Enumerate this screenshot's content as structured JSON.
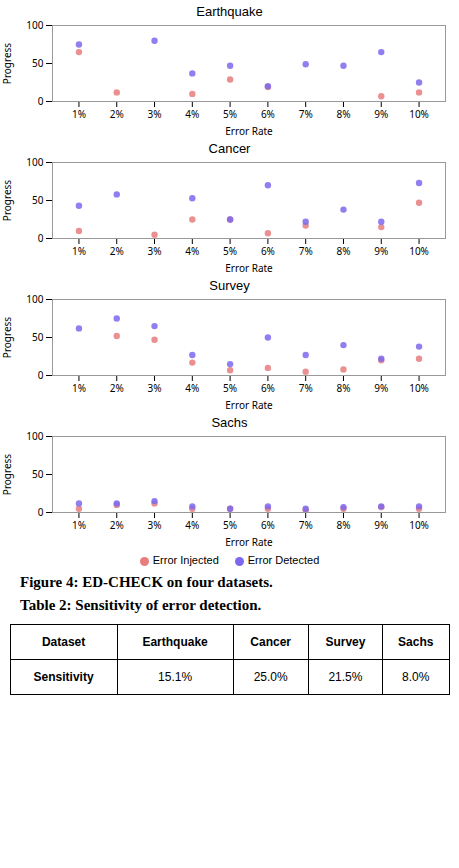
{
  "chart_data": [
    {
      "type": "scatter",
      "title": "Earthquake",
      "xlabel": "Error Rate",
      "ylabel": "Progress",
      "x": [
        1,
        2,
        3,
        4,
        5,
        6,
        7,
        8,
        9,
        10
      ],
      "series": [
        {
          "name": "Error Injected",
          "color": "#e87d7d",
          "marker": "o",
          "values": [
            65,
            12,
            null,
            10,
            29,
            19,
            null,
            null,
            7,
            12
          ]
        },
        {
          "name": "Error Detected",
          "color": "#7b68ee",
          "marker": "o",
          "values": [
            75,
            null,
            80,
            37,
            47,
            20,
            49,
            47,
            65,
            25
          ]
        }
      ],
      "xlim": [
        0.3,
        10.7
      ],
      "xticks": [
        {
          "value": 1,
          "label": "1%"
        },
        {
          "value": 2,
          "label": "2%"
        },
        {
          "value": 3,
          "label": "3%"
        },
        {
          "value": 4,
          "label": "4%"
        },
        {
          "value": 5,
          "label": "5%"
        },
        {
          "value": 6,
          "label": "6%"
        },
        {
          "value": 7,
          "label": "7%"
        },
        {
          "value": 8,
          "label": "8%"
        },
        {
          "value": 9,
          "label": "9%"
        },
        {
          "value": 10,
          "label": "10%"
        }
      ],
      "ylim": [
        0,
        100
      ],
      "yticks": [
        0,
        50,
        100
      ],
      "grid": false
    },
    {
      "type": "scatter",
      "title": "Cancer",
      "xlabel": "Error Rate",
      "ylabel": "Progress",
      "x": [
        1,
        2,
        3,
        4,
        5,
        6,
        7,
        8,
        9,
        10
      ],
      "series": [
        {
          "name": "Error Injected",
          "color": "#e87d7d",
          "marker": "o",
          "values": [
            10,
            null,
            5,
            25,
            25,
            7,
            17,
            null,
            15,
            47
          ]
        },
        {
          "name": "Error Detected",
          "color": "#7b68ee",
          "marker": "o",
          "values": [
            43,
            58,
            null,
            53,
            25,
            70,
            22,
            38,
            22,
            73
          ]
        }
      ],
      "xlim": [
        0.3,
        10.7
      ],
      "xticks": [
        {
          "value": 1,
          "label": "1%"
        },
        {
          "value": 2,
          "label": "2%"
        },
        {
          "value": 3,
          "label": "3%"
        },
        {
          "value": 4,
          "label": "4%"
        },
        {
          "value": 5,
          "label": "5%"
        },
        {
          "value": 6,
          "label": "6%"
        },
        {
          "value": 7,
          "label": "7%"
        },
        {
          "value": 8,
          "label": "8%"
        },
        {
          "value": 9,
          "label": "9%"
        },
        {
          "value": 10,
          "label": "10%"
        }
      ],
      "ylim": [
        0,
        100
      ],
      "yticks": [
        0,
        50,
        100
      ],
      "grid": false
    },
    {
      "type": "scatter",
      "title": "Survey",
      "xlabel": "Error Rate",
      "ylabel": "Progress",
      "x": [
        1,
        2,
        3,
        4,
        5,
        6,
        7,
        8,
        9,
        10
      ],
      "series": [
        {
          "name": "Error Injected",
          "color": "#e87d7d",
          "marker": "o",
          "values": [
            null,
            52,
            47,
            17,
            7,
            10,
            5,
            8,
            20,
            22
          ]
        },
        {
          "name": "Error Detected",
          "color": "#7b68ee",
          "marker": "o",
          "values": [
            62,
            75,
            65,
            27,
            15,
            50,
            27,
            40,
            22,
            38
          ]
        }
      ],
      "xlim": [
        0.3,
        10.7
      ],
      "xticks": [
        {
          "value": 1,
          "label": "1%"
        },
        {
          "value": 2,
          "label": "2%"
        },
        {
          "value": 3,
          "label": "3%"
        },
        {
          "value": 4,
          "label": "4%"
        },
        {
          "value": 5,
          "label": "5%"
        },
        {
          "value": 6,
          "label": "6%"
        },
        {
          "value": 7,
          "label": "7%"
        },
        {
          "value": 8,
          "label": "8%"
        },
        {
          "value": 9,
          "label": "9%"
        },
        {
          "value": 10,
          "label": "10%"
        }
      ],
      "ylim": [
        0,
        100
      ],
      "yticks": [
        0,
        50,
        100
      ],
      "grid": false
    },
    {
      "type": "scatter",
      "title": "Sachs",
      "xlabel": "Error Rate",
      "ylabel": "Progress",
      "x": [
        1,
        2,
        3,
        4,
        5,
        6,
        7,
        8,
        9,
        10
      ],
      "series": [
        {
          "name": "Error Injected",
          "color": "#e87d7d",
          "marker": "o",
          "values": [
            5,
            10,
            12,
            5,
            5,
            5,
            3,
            5,
            7,
            5
          ]
        },
        {
          "name": "Error Detected",
          "color": "#7b68ee",
          "marker": "o",
          "values": [
            12,
            12,
            15,
            8,
            5,
            8,
            5,
            7,
            8,
            8
          ]
        }
      ],
      "xlim": [
        0.3,
        10.7
      ],
      "xticks": [
        {
          "value": 1,
          "label": "1%"
        },
        {
          "value": 2,
          "label": "2%"
        },
        {
          "value": 3,
          "label": "3%"
        },
        {
          "value": 4,
          "label": "4%"
        },
        {
          "value": 5,
          "label": "5%"
        },
        {
          "value": 6,
          "label": "6%"
        },
        {
          "value": 7,
          "label": "7%"
        },
        {
          "value": 8,
          "label": "8%"
        },
        {
          "value": 9,
          "label": "9%"
        },
        {
          "value": 10,
          "label": "10%"
        }
      ],
      "ylim": [
        0,
        100
      ],
      "yticks": [
        0,
        50,
        100
      ],
      "grid": false
    }
  ],
  "figure_caption": "Figure 4: ED-CHECK on four datasets.",
  "table": {
    "caption": "Table 2: Sensitivity of error detection.",
    "rows": [
      [
        "Dataset",
        "Earthquake",
        "Cancer",
        "Survey",
        "Sachs"
      ],
      [
        "Sensitivity",
        "15.1%",
        "25.0%",
        "21.5%",
        "8.0%"
      ]
    ]
  }
}
